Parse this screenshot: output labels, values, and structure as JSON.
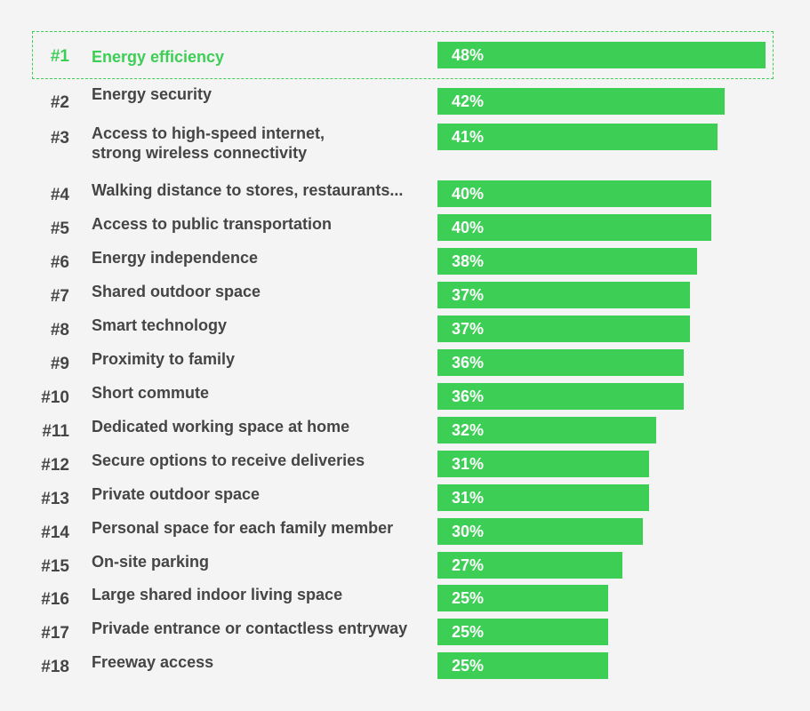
{
  "chart_data": {
    "type": "bar",
    "orientation": "horizontal",
    "highlighted_rank": "#1",
    "accent_color": "#3cce55",
    "text_color": "#454545",
    "background_color": "#f4f4f4",
    "xlim": [
      0,
      48
    ],
    "items": [
      {
        "rank": "#1",
        "label": "Energy efficiency",
        "value": 48,
        "value_label": "48%"
      },
      {
        "rank": "#2",
        "label": "Energy security",
        "value": 42,
        "value_label": "42%"
      },
      {
        "rank": "#3",
        "label": "Access to high-speed internet,\nstrong wireless connectivity",
        "value": 41,
        "value_label": "41%"
      },
      {
        "rank": "#4",
        "label": "Walking distance to stores, restaurants...",
        "value": 40,
        "value_label": "40%"
      },
      {
        "rank": "#5",
        "label": "Access to public transportation",
        "value": 40,
        "value_label": "40%"
      },
      {
        "rank": "#6",
        "label": "Energy independence",
        "value": 38,
        "value_label": "38%"
      },
      {
        "rank": "#7",
        "label": "Shared outdoor space",
        "value": 37,
        "value_label": "37%"
      },
      {
        "rank": "#8",
        "label": "Smart technology",
        "value": 37,
        "value_label": "37%"
      },
      {
        "rank": "#9",
        "label": "Proximity to family",
        "value": 36,
        "value_label": "36%"
      },
      {
        "rank": "#10",
        "label": "Short commute",
        "value": 36,
        "value_label": "36%"
      },
      {
        "rank": "#11",
        "label": "Dedicated working space at home",
        "value": 32,
        "value_label": "32%"
      },
      {
        "rank": "#12",
        "label": "Secure options to receive deliveries",
        "value": 31,
        "value_label": "31%"
      },
      {
        "rank": "#13",
        "label": "Private outdoor space",
        "value": 31,
        "value_label": "31%"
      },
      {
        "rank": "#14",
        "label": "Personal space for each family member",
        "value": 30,
        "value_label": "30%"
      },
      {
        "rank": "#15",
        "label": "On-site parking",
        "value": 27,
        "value_label": "27%"
      },
      {
        "rank": "#16",
        "label": "Large shared indoor living space",
        "value": 25,
        "value_label": "25%"
      },
      {
        "rank": "#17",
        "label": "Privade entrance or contactless entryway",
        "value": 25,
        "value_label": "25%"
      },
      {
        "rank": "#18",
        "label": "Freeway access",
        "value": 25,
        "value_label": "25%"
      }
    ]
  }
}
